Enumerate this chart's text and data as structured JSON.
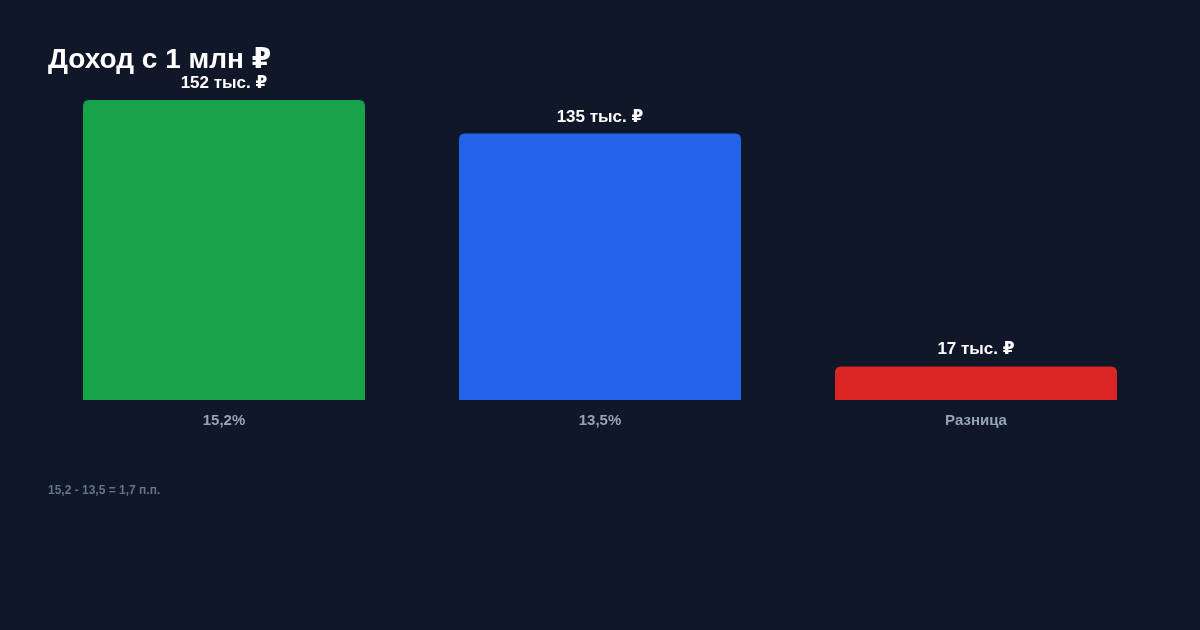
{
  "chart_data": {
    "type": "bar",
    "title": "Доход с 1 млн ₽",
    "categories": [
      "15,2%",
      "13,5%",
      "Разница"
    ],
    "values": [
      152,
      135,
      17
    ],
    "value_labels": [
      "152 тыс. ₽",
      "135 тыс. ₽",
      "17 тыс. ₽"
    ],
    "colors": [
      "#16a34a",
      "#2563eb",
      "#dc2626"
    ],
    "annotations": [
      "15,2 - 13,5 = 1,7 п.п."
    ]
  }
}
